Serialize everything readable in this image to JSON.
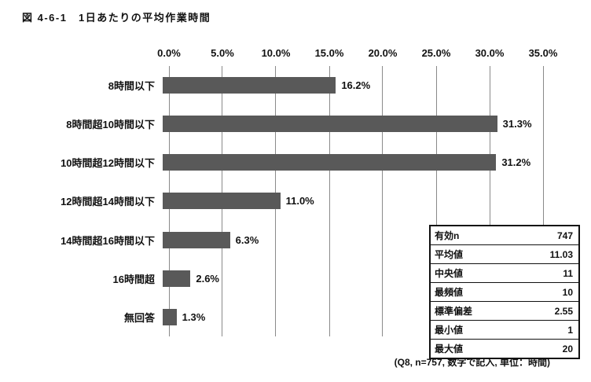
{
  "title": "図 4-6-1　1日あたりの平均作業時間",
  "chart_data": {
    "type": "bar",
    "orientation": "horizontal",
    "title": "図 4-6-1　1日あたりの平均作業時間",
    "categories": [
      "8時間以下",
      "8時間超10時間以下",
      "10時間超12時間以下",
      "12時間超14時間以下",
      "14時間超16時間以下",
      "16時間超",
      "無回答"
    ],
    "values": [
      16.2,
      31.3,
      31.2,
      11.0,
      6.3,
      2.6,
      1.3
    ],
    "value_labels": [
      "16.2%",
      "31.3%",
      "31.2%",
      "11.0%",
      "6.3%",
      "2.6%",
      "1.3%"
    ],
    "xlim": [
      0,
      35
    ],
    "x_ticks": [
      "0.0%",
      "5.0%",
      "10.0%",
      "15.0%",
      "20.0%",
      "25.0%",
      "30.0%",
      "35.0%"
    ],
    "grid": true,
    "legend": "none",
    "bar_color": "#595959"
  },
  "stats_table": {
    "rows": [
      {
        "label": "有効n",
        "value": "747"
      },
      {
        "label": "平均値",
        "value": "11.03"
      },
      {
        "label": "中央値",
        "value": "11"
      },
      {
        "label": "最頻値",
        "value": "10"
      },
      {
        "label": "標準偏差",
        "value": "2.55"
      },
      {
        "label": "最小値",
        "value": "1"
      },
      {
        "label": "最大値",
        "value": "20"
      }
    ]
  },
  "footnote": "(Q8, n=757, 数字で記入, 単位：時間)"
}
